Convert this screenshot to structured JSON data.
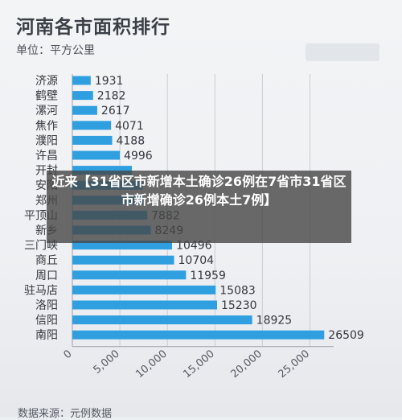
{
  "title": "河南各市面积排行",
  "unit_label": "单位：平方公里",
  "footer_text": "数据来源：元例数据",
  "overlay": {
    "headline": "近来【31省区市新增本土确诊26例在7省市31省区市新增确诊26例本土7例】"
  },
  "colors": {
    "bar": "#2f9fe0",
    "axis": "#9aa0a8",
    "grid": "#c9cdd3",
    "text": "#33373d"
  },
  "chart_data": {
    "type": "bar",
    "orientation": "horizontal",
    "categories": [
      "济源",
      "鹤壁",
      "漯河",
      "焦作",
      "濮阳",
      "许昌",
      "开封",
      "安阳",
      "郑州",
      "平顶山",
      "新乡",
      "三门峡",
      "商丘",
      "周口",
      "驻马店",
      "洛阳",
      "信阳",
      "南阳"
    ],
    "values": [
      1931,
      2182,
      2617,
      4071,
      4188,
      4996,
      6266,
      7413,
      7507,
      7882,
      8249,
      10496,
      10704,
      11959,
      15083,
      15230,
      18925,
      26509
    ],
    "value_labels": [
      "1931",
      "2182",
      "2617",
      "4071",
      "4188",
      "4996",
      "",
      "",
      "",
      "7882",
      "8249",
      "10496",
      "10704",
      "11959",
      "15083",
      "15230",
      "18925",
      "26509"
    ],
    "xticks": [
      "0",
      "5,000",
      "10,000",
      "15,000",
      "20,000",
      "25,000"
    ],
    "xtick_values": [
      0,
      5000,
      10000,
      15000,
      20000,
      25000
    ],
    "xlim": [
      0,
      27500
    ],
    "grid": true,
    "title": "河南各市面积排行",
    "ylabel": "",
    "xlabel": ""
  }
}
